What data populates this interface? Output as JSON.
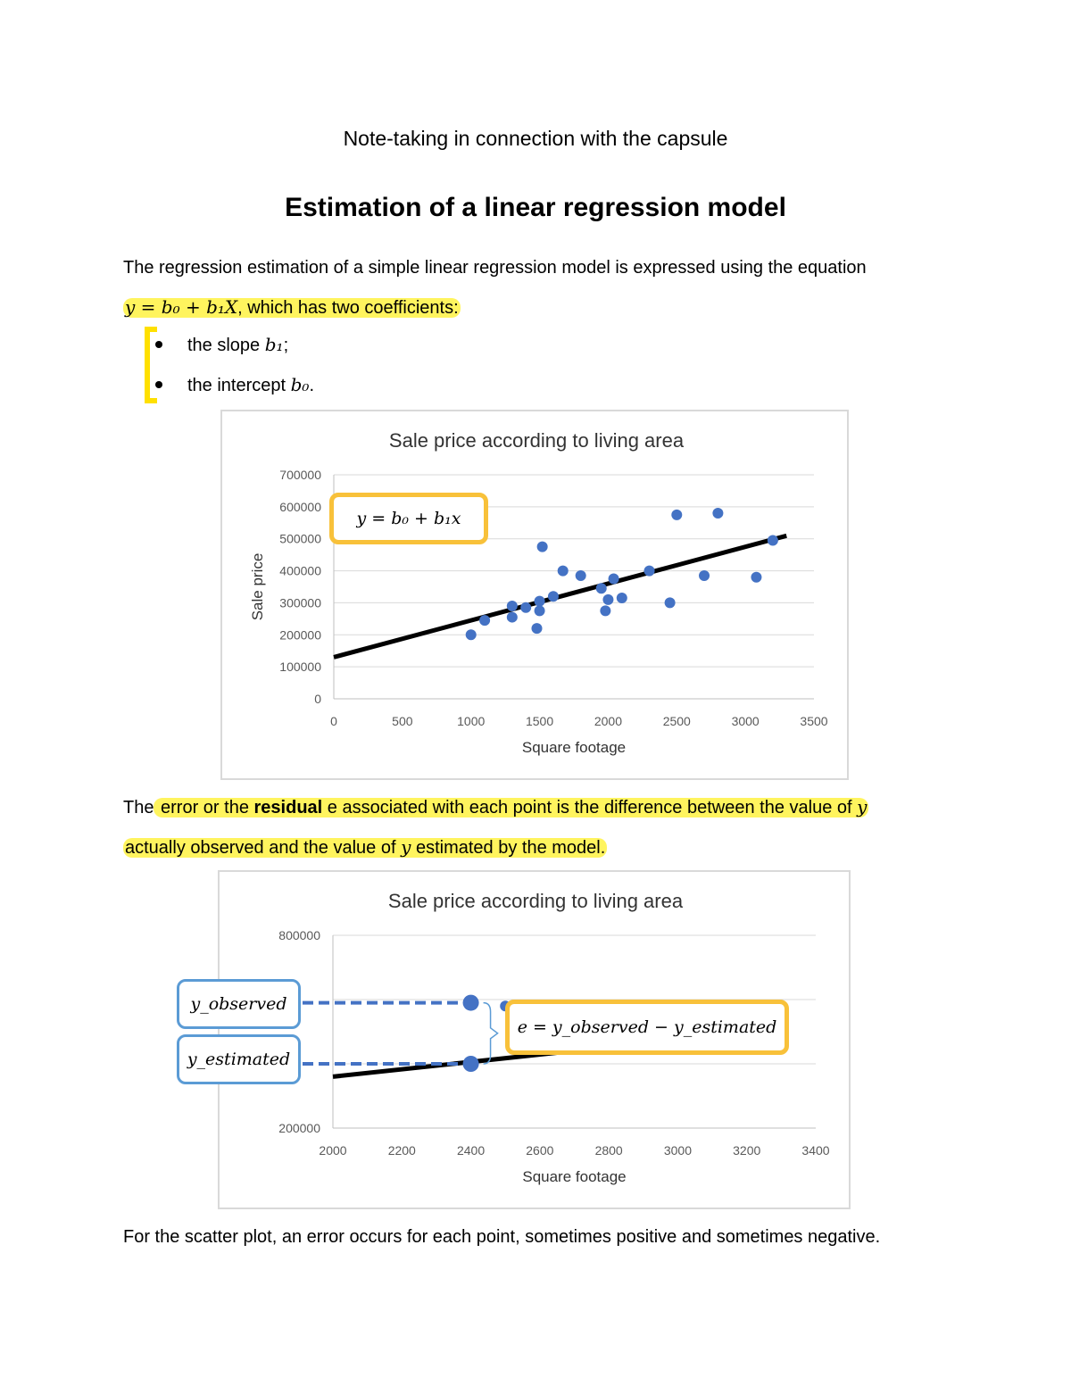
{
  "header": {
    "subtitle": "Note-taking in connection with the capsule",
    "title": "Estimation of a linear regression model"
  },
  "intro": {
    "text": "The regression estimation of a simple linear regression model is expressed using the equation",
    "equation": "y = b₀ + b₁X",
    "equation_tail": ", which has two coefficients:"
  },
  "bullets": [
    {
      "label": "the slope ",
      "symbol": "b₁",
      "end": ";"
    },
    {
      "label": "the intercept ",
      "symbol": "b₀",
      "end": "."
    }
  ],
  "residual_para": {
    "pre": "The",
    "part1": " error or the ",
    "bold": "residual",
    "part2": " e associated with each point is the difference between the value of ",
    "y1": "y",
    "part3": "actually observed and the value of ",
    "y2": "y",
    "part4": " estimated by the model",
    "end": "."
  },
  "footer_text": "For the scatter plot, an error occurs for each point, sometimes positive and sometimes negative.",
  "callouts": {
    "eq1": "y = b₀ + b₁x",
    "observed": "y_observed",
    "estimated": "y_estimated",
    "eq2": "e = y_observed − y_estimated"
  },
  "colors": {
    "points": "#4472c4",
    "regression_line": "#000000",
    "highlight": "#ffeb3b",
    "callout_orange": "#f8c13a",
    "callout_blue": "#5b9bd5"
  },
  "chart_data": [
    {
      "type": "scatter",
      "title": "Sale price according to living area",
      "xlabel": "Square footage",
      "ylabel": "Sale price",
      "xlim": [
        0,
        3500
      ],
      "ylim": [
        0,
        700000
      ],
      "xticks": [
        0,
        500,
        1000,
        1500,
        2000,
        2500,
        3000,
        3500
      ],
      "yticks": [
        0,
        100000,
        200000,
        300000,
        400000,
        500000,
        600000,
        700000
      ],
      "grid": true,
      "points": [
        [
          1000,
          200000
        ],
        [
          1100,
          245000
        ],
        [
          1300,
          290000
        ],
        [
          1300,
          255000
        ],
        [
          1400,
          285000
        ],
        [
          1480,
          220000
        ],
        [
          1500,
          275000
        ],
        [
          1500,
          305000
        ],
        [
          1520,
          475000
        ],
        [
          1600,
          320000
        ],
        [
          1670,
          400000
        ],
        [
          1800,
          385000
        ],
        [
          1950,
          345000
        ],
        [
          1980,
          275000
        ],
        [
          2000,
          310000
        ],
        [
          2040,
          375000
        ],
        [
          2100,
          315000
        ],
        [
          2300,
          400000
        ],
        [
          2450,
          300000
        ],
        [
          2500,
          575000
        ],
        [
          2700,
          385000
        ],
        [
          2800,
          580000
        ],
        [
          3080,
          380000
        ],
        [
          3200,
          495000
        ]
      ],
      "regression": {
        "intercept": 130000,
        "slope": 115,
        "x_range": [
          0,
          3300
        ]
      }
    },
    {
      "type": "scatter",
      "title": "Sale price according to living area",
      "xlabel": "Square footage",
      "ylabel": "",
      "xlim": [
        2000,
        3400
      ],
      "ylim": [
        200000,
        800000
      ],
      "xticks": [
        2000,
        2200,
        2400,
        2600,
        2800,
        3000,
        3200,
        3400
      ],
      "yticks": [
        200000,
        800000
      ],
      "grid": true,
      "points": [
        [
          2400,
          590000
        ],
        [
          2400,
          400000
        ],
        [
          2500,
          580000
        ]
      ],
      "regression": {
        "intercept": 130000,
        "slope": 115,
        "x_range": [
          2000,
          2680
        ]
      }
    }
  ]
}
